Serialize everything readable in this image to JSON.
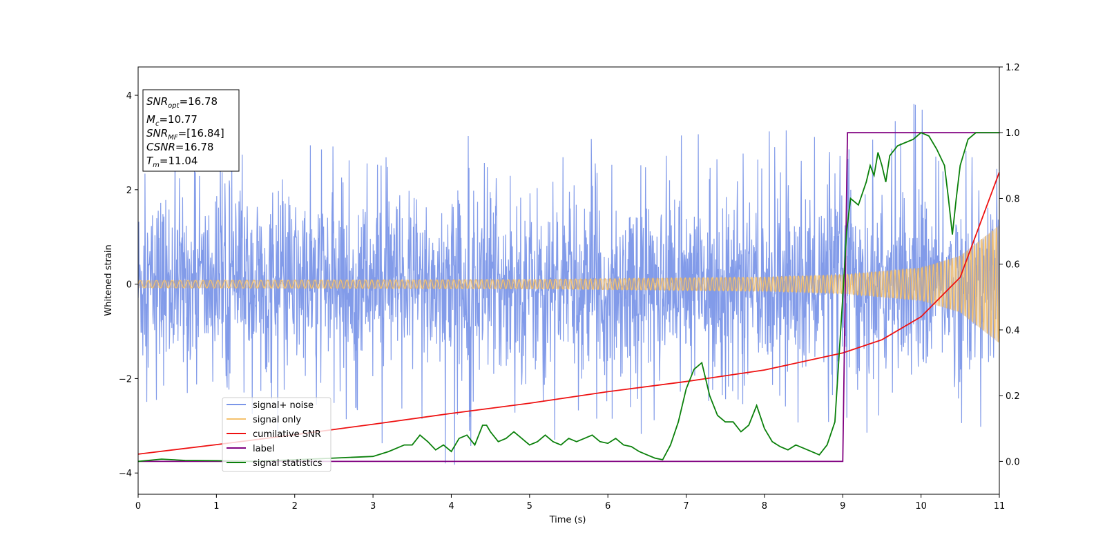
{
  "chart_data": {
    "type": "line",
    "xlabel": "Time (s)",
    "ylabel": "Whitened strain",
    "xlim": [
      0,
      11
    ],
    "ylim_left": [
      -4.45,
      4.6
    ],
    "ylim_right": [
      -0.1,
      1.2
    ],
    "x_ticks": [
      "0",
      "1",
      "2",
      "3",
      "4",
      "5",
      "6",
      "7",
      "8",
      "9",
      "10",
      "11"
    ],
    "y_ticks_left": [
      {
        "value": 4,
        "label": "4"
      },
      {
        "value": 2,
        "label": "2"
      },
      {
        "value": 0,
        "label": "0"
      },
      {
        "value": -2,
        "label": "−2"
      },
      {
        "value": -4,
        "label": "−4"
      }
    ],
    "y_ticks_right": [
      "1.2",
      "1.0",
      "0.8",
      "0.6",
      "0.4",
      "0.2",
      "0.0"
    ],
    "info_box": {
      "snr_opt": {
        "base": "SNR",
        "sub": "opt",
        "value": "=16.78"
      },
      "mc": {
        "base": "M",
        "sub": "c",
        "value": "=10.77"
      },
      "snr_mf": {
        "base": "SNR",
        "sub": "MF",
        "value": "=[16.84]"
      },
      "csnr": {
        "base": "CSNR",
        "value": "=16.78"
      },
      "tm": {
        "base": "T",
        "sub": "m",
        "value": "=11.04"
      }
    },
    "legend": {
      "placement": "lower-left",
      "entries": [
        "signal+ noise",
        "signal only",
        "cumilative SNR",
        "label",
        "signal statistics"
      ]
    },
    "colors": {
      "signal_noise": "#7b96e8",
      "signal_only": "#f5c16c",
      "signal_only_band": "#c4a07e",
      "cumulative_snr": "#ee1111",
      "label": "#800080",
      "signal_statistics": "#0a800a"
    },
    "series": [
      {
        "name": "signal+ noise",
        "axis": "left",
        "noise_sigma": 0.95,
        "x": [
          0,
          1,
          2,
          3,
          4,
          5,
          6,
          7,
          8,
          9,
          10,
          11
        ],
        "upper_envelope": [
          3.2,
          2.8,
          2.9,
          3.1,
          3.2,
          3.0,
          3.1,
          3.2,
          3.3,
          3.2,
          4.0,
          3.7
        ],
        "lower_envelope": [
          -3.0,
          -3.0,
          -3.2,
          -3.3,
          -3.9,
          -3.3,
          -3.3,
          -3.0,
          -3.0,
          -3.1,
          -3.4,
          -3.6
        ]
      },
      {
        "name": "signal only",
        "axis": "left",
        "x": [
          0,
          5,
          8,
          9,
          10,
          10.5,
          11
        ],
        "amplitude": [
          0.08,
          0.1,
          0.15,
          0.2,
          0.35,
          0.6,
          1.25
        ]
      },
      {
        "name": "cumilative SNR",
        "axis": "right",
        "x": [
          0,
          1,
          2,
          3,
          4,
          5,
          6,
          7,
          8,
          9,
          9.5,
          10,
          10.5,
          11
        ],
        "y": [
          0.022,
          0.051,
          0.081,
          0.113,
          0.146,
          0.177,
          0.212,
          0.243,
          0.278,
          0.33,
          0.37,
          0.44,
          0.56,
          0.88
        ]
      },
      {
        "name": "label",
        "axis": "right",
        "x": [
          0,
          9.0,
          9.06,
          11
        ],
        "y": [
          0.0,
          0.0,
          1.0,
          1.0
        ]
      },
      {
        "name": "signal statistics",
        "axis": "right",
        "x": [
          0,
          0.3,
          0.6,
          1.0,
          1.5,
          2.0,
          2.5,
          3.0,
          3.2,
          3.4,
          3.5,
          3.6,
          3.7,
          3.8,
          3.9,
          4.0,
          4.1,
          4.2,
          4.3,
          4.4,
          4.45,
          4.5,
          4.6,
          4.7,
          4.8,
          4.9,
          5.0,
          5.1,
          5.2,
          5.3,
          5.4,
          5.5,
          5.6,
          5.7,
          5.8,
          5.9,
          6.0,
          6.1,
          6.2,
          6.3,
          6.4,
          6.5,
          6.6,
          6.7,
          6.8,
          6.9,
          7.0,
          7.1,
          7.2,
          7.3,
          7.4,
          7.5,
          7.6,
          7.7,
          7.8,
          7.9,
          8.0,
          8.1,
          8.2,
          8.3,
          8.4,
          8.5,
          8.6,
          8.7,
          8.8,
          8.9,
          9.0,
          9.05,
          9.1,
          9.2,
          9.3,
          9.35,
          9.4,
          9.45,
          9.5,
          9.55,
          9.6,
          9.7,
          9.8,
          9.9,
          10.0,
          10.1,
          10.2,
          10.3,
          10.35,
          10.4,
          10.45,
          10.5,
          10.6,
          10.7,
          10.8,
          11.0
        ],
        "y": [
          0.0,
          0.007,
          0.003,
          0.002,
          0.0,
          0.005,
          0.01,
          0.015,
          0.03,
          0.05,
          0.05,
          0.08,
          0.06,
          0.035,
          0.05,
          0.03,
          0.07,
          0.08,
          0.05,
          0.11,
          0.11,
          0.09,
          0.06,
          0.07,
          0.09,
          0.07,
          0.05,
          0.06,
          0.08,
          0.06,
          0.05,
          0.07,
          0.06,
          0.07,
          0.08,
          0.06,
          0.055,
          0.07,
          0.05,
          0.045,
          0.03,
          0.02,
          0.01,
          0.005,
          0.05,
          0.12,
          0.22,
          0.28,
          0.3,
          0.2,
          0.14,
          0.12,
          0.12,
          0.09,
          0.11,
          0.17,
          0.1,
          0.06,
          0.045,
          0.035,
          0.05,
          0.04,
          0.03,
          0.02,
          0.05,
          0.12,
          0.5,
          0.7,
          0.8,
          0.78,
          0.85,
          0.9,
          0.87,
          0.94,
          0.9,
          0.85,
          0.93,
          0.96,
          0.97,
          0.98,
          1.0,
          0.99,
          0.95,
          0.9,
          0.8,
          0.69,
          0.8,
          0.9,
          0.98,
          1.0,
          1.0,
          1.0
        ]
      }
    ]
  }
}
